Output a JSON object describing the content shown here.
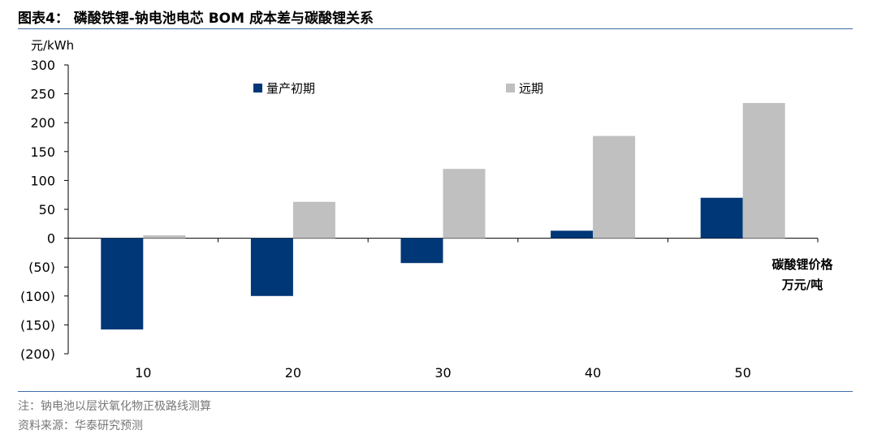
{
  "figure": {
    "title": "图表4： 磷酸铁锂-钠电池电芯 BOM 成本差与碳酸锂关系",
    "note": "注：钠电池以层状氧化物正极路线测算",
    "source": "资料来源：华泰研究预测",
    "accent_color": "#3f6fa8"
  },
  "chart_data": {
    "type": "bar",
    "title": "",
    "ylabel": "元/kWh",
    "xlabel_line1": "碳酸锂价格",
    "xlabel_line2": "万元/吨",
    "categories": [
      "10",
      "20",
      "30",
      "40",
      "50"
    ],
    "ylim": [
      -200,
      300
    ],
    "yticks": [
      300,
      250,
      200,
      150,
      100,
      50,
      0,
      -50,
      -100,
      -150,
      -200
    ],
    "ytick_labels": [
      "300",
      "250",
      "200",
      "150",
      "100",
      "50",
      "0",
      "(50)",
      "(100)",
      "(150)",
      "(200)"
    ],
    "grid": false,
    "legend_position": "top",
    "series": [
      {
        "name": "量产初期",
        "color": "#003777",
        "values": [
          -158,
          -100,
          -43,
          13,
          70
        ]
      },
      {
        "name": "远期",
        "color": "#c0c0c0",
        "values": [
          5,
          63,
          120,
          177,
          234
        ]
      }
    ]
  }
}
